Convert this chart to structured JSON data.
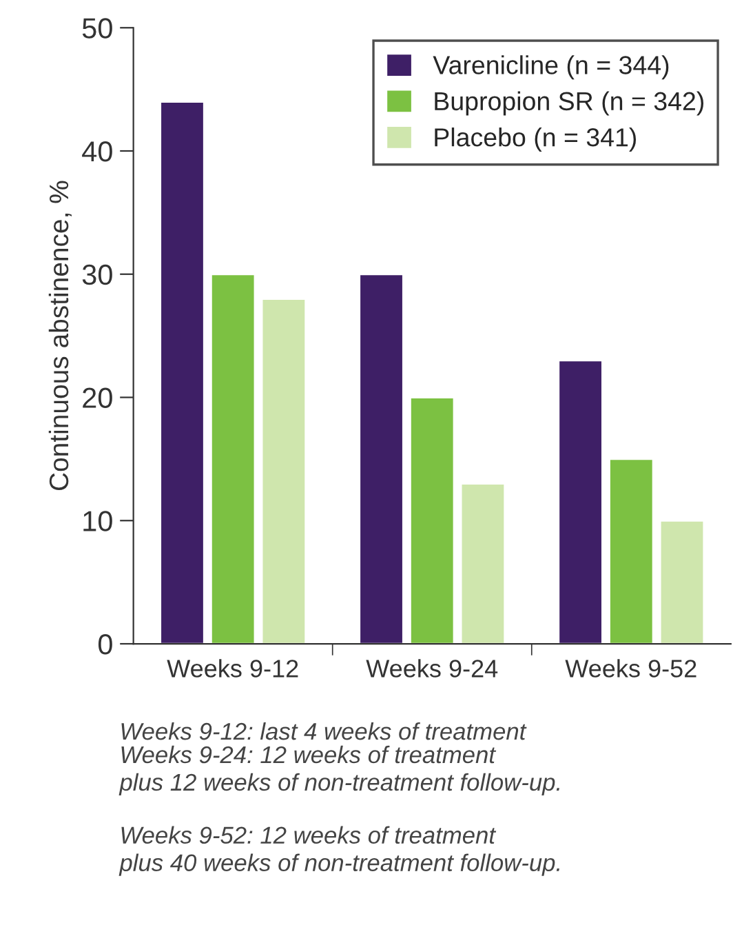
{
  "chart_data": {
    "type": "bar",
    "ylabel": "Continuous abstinence, %",
    "categories": [
      "Weeks 9-12",
      "Weeks 9-24",
      "Weeks 9-52"
    ],
    "series": [
      {
        "name": "Varenicline (n = 344)",
        "color": "#3e1f66",
        "values": [
          44,
          30,
          23
        ]
      },
      {
        "name": "Bupropion SR (n = 342)",
        "color": "#7cc142",
        "values": [
          30,
          20,
          15
        ]
      },
      {
        "name": "Placebo (n = 341)",
        "color": "#cfe6ad",
        "values": [
          28,
          13,
          10
        ]
      }
    ],
    "ylim": [
      0,
      50
    ],
    "yticks": [
      0,
      10,
      20,
      30,
      40,
      50
    ],
    "grid": false,
    "legend": "top right",
    "annotations": [
      "Weeks 9-12: last 4 weeks of treatment",
      "Weeks 9-24: 12 weeks of treatment\nplus 12 weeks of non-treatment follow-up.",
      "Weeks 9-52: 12 weeks of treatment\nplus 40 weeks of non-treatment follow-up."
    ]
  }
}
